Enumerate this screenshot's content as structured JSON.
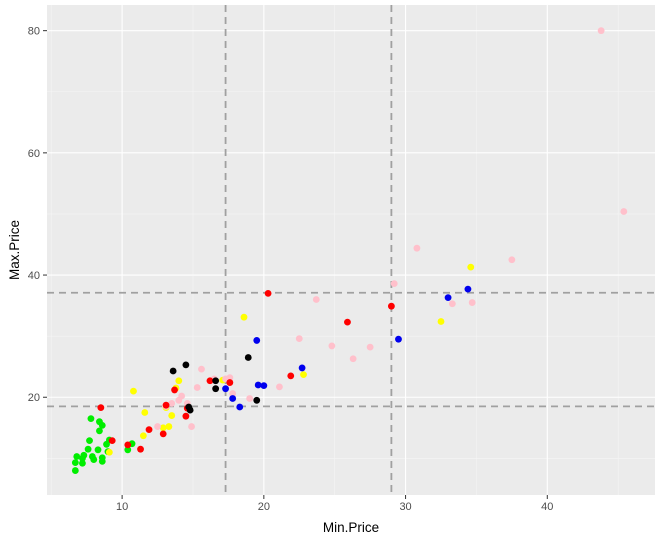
{
  "chart_data": {
    "type": "scatter",
    "title": "",
    "xlabel": "Min.Price",
    "ylabel": "Max.Price",
    "xlim": [
      4.7,
      47.6
    ],
    "ylim": [
      4.0,
      84.2
    ],
    "x_ticks": [
      10,
      20,
      30,
      40
    ],
    "y_ticks": [
      20,
      40,
      60,
      80
    ],
    "grid": true,
    "legend": "none",
    "panel_background": "#ebebeb",
    "grid_color": "#ffffff",
    "reference_lines": {
      "vertical": [
        17.3,
        29.0
      ],
      "horizontal": [
        18.5,
        37.1
      ],
      "color": "#a0a0a0",
      "style": "dashed"
    },
    "series": [
      {
        "color": "#00ee00",
        "points": [
          [
            6.7,
            8.0
          ],
          [
            6.7,
            9.3
          ],
          [
            6.8,
            10.3
          ],
          [
            7.2,
            9.2
          ],
          [
            7.2,
            10.0
          ],
          [
            7.3,
            10.5
          ],
          [
            7.6,
            11.5
          ],
          [
            7.7,
            12.9
          ],
          [
            7.8,
            16.5
          ],
          [
            7.9,
            10.3
          ],
          [
            8.0,
            9.8
          ],
          [
            8.3,
            11.4
          ],
          [
            8.4,
            14.5
          ],
          [
            8.4,
            16.0
          ],
          [
            8.6,
            15.4
          ],
          [
            8.6,
            10.1
          ],
          [
            8.6,
            9.5
          ],
          [
            8.9,
            12.3
          ],
          [
            9.0,
            11.1
          ],
          [
            9.1,
            13.0
          ],
          [
            10.4,
            11.4
          ],
          [
            10.7,
            12.4
          ]
        ]
      },
      {
        "color": "#ffff00",
        "points": [
          [
            9.1,
            11.0
          ],
          [
            10.8,
            21.0
          ],
          [
            11.5,
            13.7
          ],
          [
            11.6,
            17.5
          ],
          [
            12.9,
            15.0
          ],
          [
            13.1,
            18.3
          ],
          [
            13.3,
            15.2
          ],
          [
            13.5,
            17.0
          ],
          [
            13.8,
            21.5
          ],
          [
            14.0,
            22.7
          ],
          [
            17.1,
            22.8
          ],
          [
            18.6,
            33.1
          ],
          [
            22.8,
            23.7
          ],
          [
            32.5,
            32.4
          ],
          [
            34.6,
            41.3
          ]
        ]
      },
      {
        "color": "#ffc0cb",
        "points": [
          [
            12.5,
            15.2
          ],
          [
            13.1,
            18.5
          ],
          [
            13.5,
            19.0
          ],
          [
            14.0,
            19.5
          ],
          [
            14.2,
            20.2
          ],
          [
            14.6,
            19.0
          ],
          [
            14.9,
            15.2
          ],
          [
            15.3,
            21.6
          ],
          [
            15.6,
            24.6
          ],
          [
            16.5,
            23.0
          ],
          [
            17.3,
            23.0
          ],
          [
            17.6,
            23.2
          ],
          [
            17.8,
            20.6
          ],
          [
            19.0,
            19.8
          ],
          [
            21.1,
            21.7
          ],
          [
            22.5,
            29.6
          ],
          [
            23.7,
            36.0
          ],
          [
            24.8,
            28.4
          ],
          [
            26.3,
            26.3
          ],
          [
            27.5,
            28.2
          ],
          [
            29.2,
            38.6
          ],
          [
            30.8,
            44.4
          ],
          [
            33.3,
            35.3
          ],
          [
            34.7,
            35.5
          ],
          [
            37.5,
            42.5
          ],
          [
            43.8,
            80.0
          ],
          [
            45.4,
            50.4
          ]
        ]
      },
      {
        "color": "#ff0000",
        "points": [
          [
            8.5,
            18.3
          ],
          [
            9.3,
            12.9
          ],
          [
            10.4,
            12.2
          ],
          [
            11.3,
            11.5
          ],
          [
            11.9,
            14.7
          ],
          [
            12.9,
            14.0
          ],
          [
            13.1,
            18.7
          ],
          [
            13.7,
            21.2
          ],
          [
            14.5,
            16.9
          ],
          [
            14.6,
            18.2
          ],
          [
            16.2,
            22.7
          ],
          [
            17.6,
            22.4
          ],
          [
            20.3,
            37.0
          ],
          [
            21.9,
            23.5
          ],
          [
            25.9,
            32.3
          ],
          [
            29.0,
            34.9
          ]
        ]
      },
      {
        "color": "#0000ee",
        "points": [
          [
            17.3,
            21.4
          ],
          [
            17.8,
            19.8
          ],
          [
            18.3,
            18.4
          ],
          [
            19.5,
            29.3
          ],
          [
            19.6,
            22.0
          ],
          [
            20.0,
            21.9
          ],
          [
            22.7,
            24.8
          ],
          [
            29.5,
            29.5
          ],
          [
            33.0,
            36.3
          ],
          [
            34.4,
            37.7
          ]
        ]
      },
      {
        "color": "#000000",
        "points": [
          [
            13.6,
            24.3
          ],
          [
            14.5,
            25.3
          ],
          [
            14.7,
            18.4
          ],
          [
            14.8,
            17.9
          ],
          [
            16.6,
            21.4
          ],
          [
            16.6,
            22.7
          ],
          [
            18.9,
            26.5
          ],
          [
            19.5,
            19.5
          ]
        ]
      }
    ]
  }
}
